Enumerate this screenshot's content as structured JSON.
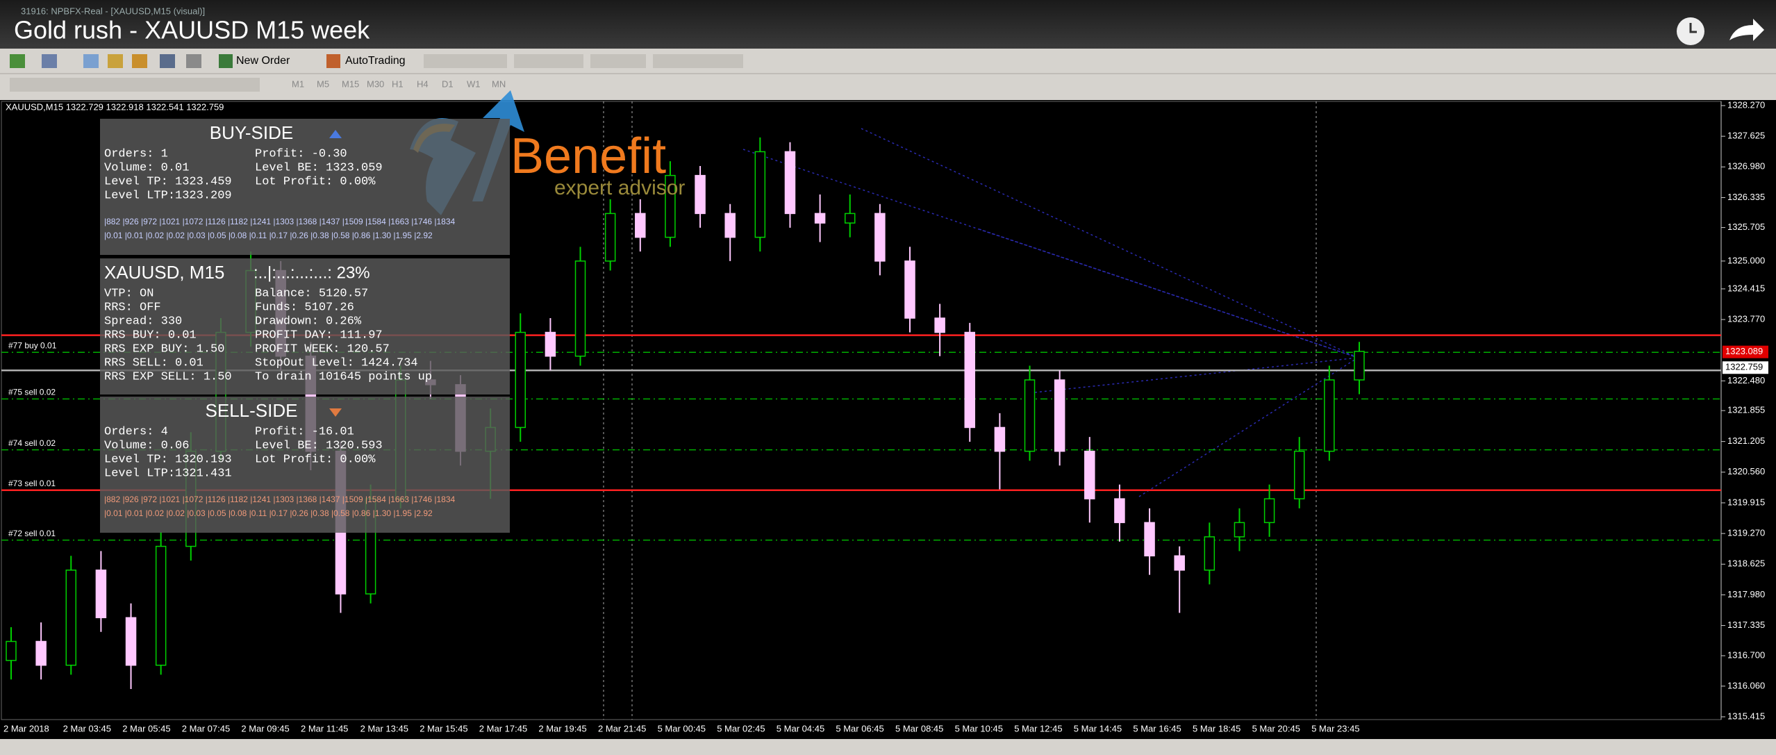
{
  "window_title": "31916: NPBFX-Real - [XAUUSD,M15 (visual)]",
  "video_title": "Gold rush - XAUUSD M15 week",
  "toolbar": {
    "new_order": "New Order",
    "autotrading": "AutoTrading",
    "timeframes": [
      "M1",
      "M5",
      "M15",
      "M30",
      "H1",
      "H4",
      "D1",
      "W1",
      "MN"
    ]
  },
  "logo": {
    "name": "Benefit",
    "tagline": "expert advisor"
  },
  "chart": {
    "type": "candlestick",
    "info": "XAUUSD,M15  1322.729 1322.918 1322.541 1322.759",
    "up_color": "#00d000",
    "down_color": "#ffc8ff",
    "ylim": [
      1315.415,
      1328.27
    ],
    "yticks": [
      {
        "value": 1328.27,
        "label": "1328.270"
      },
      1327.625,
      {
        "value": 1326.98,
        "label": "1326.980"
      },
      1326.335,
      1325.705,
      {
        "value": 1325,
        "label": "1325.000"
      },
      1324.415,
      {
        "value": 1323.77,
        "label": "1323.770"
      },
      {
        "value": 1322.48,
        "label": "1322.480"
      },
      1321.855,
      1321.205,
      {
        "value": 1320.56,
        "label": "1320.560"
      },
      1319.915,
      {
        "value": 1319.27,
        "label": "1319.270"
      },
      1318.625,
      {
        "value": 1317.98,
        "label": "1317.980"
      },
      1317.335,
      {
        "value": 1316.7,
        "label": "1316.700"
      },
      {
        "value": 1316.06,
        "label": "1316.060"
      },
      1315.415
    ],
    "price_tags": [
      {
        "value": 1323.089,
        "color": "#e00000"
      },
      {
        "value": 1322.759,
        "color": "#ffffff"
      }
    ],
    "x_labels": [
      "2 Mar 2018",
      "2 Mar 03:45",
      "2 Mar 05:45",
      "2 Mar 07:45",
      "2 Mar 09:45",
      "2 Mar 11:45",
      "2 Mar 13:45",
      "2 Mar 15:45",
      "2 Mar 17:45",
      "2 Mar 19:45",
      "2 Mar 21:45",
      "5 Mar 00:45",
      "5 Mar 02:45",
      "5 Mar 04:45",
      "5 Mar 06:45",
      "5 Mar 08:45",
      "5 Mar 10:45",
      "5 Mar 12:45",
      "5 Mar 14:45",
      "5 Mar 16:45",
      "5 Mar 18:45",
      "5 Mar 20:45",
      "5 Mar 23:45"
    ],
    "order_lines": [
      {
        "price": 1323.44,
        "color": "#ff2020",
        "dashed": false
      },
      {
        "price": 1323.08,
        "color": "#00b000",
        "dashed": true,
        "label": "#77 buy 0.01"
      },
      {
        "price": 1322.7,
        "color": "#b0b0b0",
        "dashed": false
      },
      {
        "price": 1322.1,
        "color": "#00b000",
        "dashed": true,
        "label": "#75 sell 0.02"
      },
      {
        "price": 1321.03,
        "color": "#00b000",
        "dashed": true,
        "label": "#74 sell 0.02"
      },
      {
        "price": 1320.18,
        "color": "#ff2020",
        "dashed": false,
        "label": "#73 sell 0.01"
      },
      {
        "price": 1319.13,
        "color": "#00b000",
        "dashed": true,
        "label": "#72 sell 0.01"
      }
    ],
    "candles": [
      [
        1316.6,
        1317.3,
        1316.2,
        1317.0
      ],
      [
        1317.0,
        1317.4,
        1316.2,
        1316.5
      ],
      [
        1316.5,
        1318.8,
        1316.3,
        1318.5
      ],
      [
        1318.5,
        1318.9,
        1317.2,
        1317.5
      ],
      [
        1317.5,
        1317.8,
        1316.0,
        1316.5
      ],
      [
        1316.5,
        1319.3,
        1316.3,
        1319.0
      ],
      [
        1319.0,
        1321.4,
        1318.7,
        1321.0
      ],
      [
        1321.0,
        1323.8,
        1320.8,
        1323.5
      ],
      [
        1323.5,
        1325.2,
        1323.2,
        1324.8
      ],
      [
        1324.8,
        1325.0,
        1322.7,
        1323.0
      ],
      [
        1323.0,
        1323.3,
        1320.6,
        1321.0
      ],
      [
        1321.0,
        1321.2,
        1317.6,
        1318.0
      ],
      [
        1318.0,
        1320.3,
        1317.8,
        1320.0
      ],
      [
        1320.0,
        1322.8,
        1319.8,
        1322.5
      ],
      [
        1322.5,
        1322.9,
        1322.1,
        1322.4
      ],
      [
        1322.4,
        1322.6,
        1320.7,
        1321.0
      ],
      [
        1321.0,
        1321.9,
        1320.0,
        1321.5
      ],
      [
        1321.5,
        1323.9,
        1321.2,
        1323.5
      ],
      [
        1323.5,
        1323.8,
        1322.7,
        1323.0
      ],
      [
        1323.0,
        1325.3,
        1322.8,
        1325.0
      ],
      [
        1325.0,
        1326.3,
        1324.8,
        1326.0
      ],
      [
        1326.0,
        1326.3,
        1325.2,
        1325.5
      ],
      [
        1325.5,
        1327.1,
        1325.3,
        1326.8
      ],
      [
        1326.8,
        1327.0,
        1325.7,
        1326.0
      ],
      [
        1326.0,
        1326.2,
        1325.0,
        1325.5
      ],
      [
        1325.5,
        1327.6,
        1325.2,
        1327.3
      ],
      [
        1327.3,
        1327.5,
        1325.7,
        1326.0
      ],
      [
        1326.0,
        1326.4,
        1325.4,
        1325.8
      ],
      [
        1325.8,
        1326.4,
        1325.5,
        1326.0
      ],
      [
        1326.0,
        1326.2,
        1324.7,
        1325.0
      ],
      [
        1325.0,
        1325.3,
        1323.5,
        1323.8
      ],
      [
        1323.8,
        1324.1,
        1323.0,
        1323.5
      ],
      [
        1323.5,
        1323.7,
        1321.2,
        1321.5
      ],
      [
        1321.5,
        1321.8,
        1320.2,
        1321.0
      ],
      [
        1321.0,
        1322.8,
        1320.8,
        1322.5
      ],
      [
        1322.5,
        1322.7,
        1320.7,
        1321.0
      ],
      [
        1321.0,
        1321.3,
        1319.5,
        1320.0
      ],
      [
        1320.0,
        1320.3,
        1319.1,
        1319.5
      ],
      [
        1319.5,
        1319.8,
        1318.4,
        1318.8
      ],
      [
        1318.8,
        1319.0,
        1317.6,
        1318.5
      ],
      [
        1318.5,
        1319.5,
        1318.2,
        1319.2
      ],
      [
        1319.2,
        1319.8,
        1318.9,
        1319.5
      ],
      [
        1319.5,
        1320.3,
        1319.2,
        1320.0
      ],
      [
        1320.0,
        1321.3,
        1319.8,
        1321.0
      ],
      [
        1321.0,
        1322.8,
        1320.8,
        1322.5
      ],
      [
        1322.5,
        1323.3,
        1322.2,
        1323.1
      ]
    ]
  },
  "panels": [
    {
      "title": "BUY-SIDE",
      "rows": [
        [
          "Orders: 1",
          "Profit: -0.30"
        ],
        [
          "Volume: 0.01",
          "Level BE: 1323.059"
        ],
        [
          "Level TP: 1323.459",
          "Lot Profit: 0.00%"
        ],
        [
          "Level LTP:1323.209"
        ]
      ],
      "grid": [
        "|882 |926 |972 |1021 |1072 |1126 |1182 |1241 |1303 |1368 |1437 |1509 |1584 |1663 |1746 |1834",
        "|0.01 |0.01 |0.02 |0.02 |0.03 |0.05 |0.08 |0.11 |0.17 |0.26 |0.38 |0.58 |0.86 |1.30 |1.95 |2.92"
      ]
    },
    {
      "title": "XAUUSD, M15",
      "progress": ":..|:...:...:...: 23%",
      "rows": [
        [
          "VTP: ON",
          "Balance: 5120.57"
        ],
        [
          "RRS: OFF",
          "Funds: 5107.26"
        ],
        [
          "Spread: 330",
          "Drawdown: 0.26%"
        ],
        [
          "RRS BUY: 0.01",
          "PROFIT DAY: 111.97"
        ],
        [
          "RRS EXP BUY: 1.50",
          "PROFIT WEEK: 120.57"
        ],
        [
          "RRS SELL: 0.01",
          "StopOut Level: 1424.734"
        ],
        [
          "RRS EXP SELL: 1.50",
          "To drain 101645 points up"
        ]
      ]
    },
    {
      "title": "SELL-SIDE",
      "rows": [
        [
          "Orders: 4",
          "Profit: -16.01"
        ],
        [
          "Volume: 0.06",
          "Level BE: 1320.593"
        ],
        [
          "Level TP: 1320.193",
          "Lot Profit: 0.00%"
        ],
        [
          "Level LTP:1321.431"
        ]
      ],
      "grid": [
        "|882 |926 |972 |1021 |1072 |1126 |1182 |1241 |1303 |1368 |1437 |1509 |1584 |1663 |1746 |1834",
        "|0.01 |0.01 |0.02 |0.02 |0.03 |0.05 |0.08 |0.11 |0.17 |0.26 |0.38 |0.58 |0.86 |1.30 |1.95 |2.92"
      ]
    }
  ]
}
